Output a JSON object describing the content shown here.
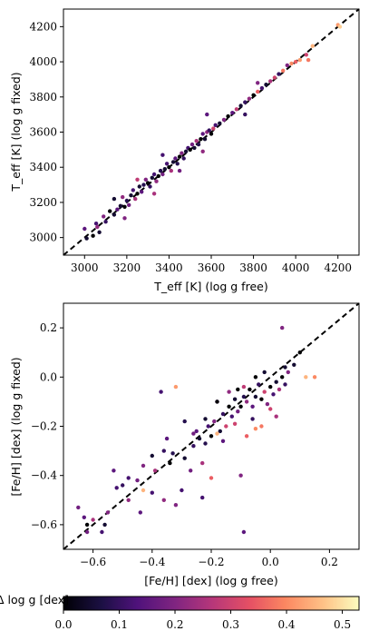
{
  "chart_data": [
    {
      "type": "scatter",
      "xlabel": "T_eff [K] (log g free)",
      "ylabel": "T_eff [K] (log g fixed)",
      "xlim": [
        2900,
        4300
      ],
      "ylim": [
        2900,
        4300
      ],
      "xticks": [
        "3000",
        "3200",
        "3400",
        "3600",
        "3800",
        "4000",
        "4200"
      ],
      "yticks": [
        "3000",
        "3200",
        "3400",
        "3600",
        "3800",
        "4000",
        "4200"
      ],
      "one_to_one_line": true,
      "color_by": "delta_log_g",
      "points": [
        {
          "x": 3000,
          "y": 3050,
          "c": 0.15
        },
        {
          "x": 3010,
          "y": 2995,
          "c": 0.05
        },
        {
          "x": 3040,
          "y": 3010,
          "c": 0.0
        },
        {
          "x": 3055,
          "y": 3080,
          "c": 0.12
        },
        {
          "x": 3060,
          "y": 3060,
          "c": 0.22
        },
        {
          "x": 3070,
          "y": 3030,
          "c": 0.05
        },
        {
          "x": 3090,
          "y": 3120,
          "c": 0.2
        },
        {
          "x": 3100,
          "y": 3090,
          "c": 0.1
        },
        {
          "x": 3120,
          "y": 3150,
          "c": 0.0
        },
        {
          "x": 3140,
          "y": 3130,
          "c": 0.05
        },
        {
          "x": 3155,
          "y": 3160,
          "c": 0.15
        },
        {
          "x": 3170,
          "y": 3180,
          "c": 0.05
        },
        {
          "x": 3180,
          "y": 3230,
          "c": 0.22
        },
        {
          "x": 3190,
          "y": 3175,
          "c": 0.0
        },
        {
          "x": 3200,
          "y": 3210,
          "c": 0.08
        },
        {
          "x": 3210,
          "y": 3185,
          "c": 0.18
        },
        {
          "x": 3220,
          "y": 3240,
          "c": 0.05
        },
        {
          "x": 3230,
          "y": 3270,
          "c": 0.12
        },
        {
          "x": 3240,
          "y": 3220,
          "c": 0.25
        },
        {
          "x": 3250,
          "y": 3250,
          "c": 0.0
        },
        {
          "x": 3260,
          "y": 3290,
          "c": 0.05
        },
        {
          "x": 3270,
          "y": 3260,
          "c": 0.15
        },
        {
          "x": 3280,
          "y": 3300,
          "c": 0.08
        },
        {
          "x": 3290,
          "y": 3330,
          "c": 0.2
        },
        {
          "x": 3300,
          "y": 3310,
          "c": 0.0
        },
        {
          "x": 3310,
          "y": 3290,
          "c": 0.1
        },
        {
          "x": 3320,
          "y": 3340,
          "c": 0.05
        },
        {
          "x": 3330,
          "y": 3360,
          "c": 0.12
        },
        {
          "x": 3340,
          "y": 3320,
          "c": 0.22
        },
        {
          "x": 3350,
          "y": 3350,
          "c": 0.0
        },
        {
          "x": 3360,
          "y": 3380,
          "c": 0.08
        },
        {
          "x": 3370,
          "y": 3360,
          "c": 0.18
        },
        {
          "x": 3380,
          "y": 3390,
          "c": 0.05
        },
        {
          "x": 3390,
          "y": 3420,
          "c": 0.12
        },
        {
          "x": 3400,
          "y": 3400,
          "c": 0.0
        },
        {
          "x": 3410,
          "y": 3380,
          "c": 0.25
        },
        {
          "x": 3420,
          "y": 3430,
          "c": 0.05
        },
        {
          "x": 3430,
          "y": 3450,
          "c": 0.15
        },
        {
          "x": 3440,
          "y": 3420,
          "c": 0.08
        },
        {
          "x": 3450,
          "y": 3460,
          "c": 0.0
        },
        {
          "x": 3460,
          "y": 3480,
          "c": 0.2
        },
        {
          "x": 3470,
          "y": 3450,
          "c": 0.1
        },
        {
          "x": 3480,
          "y": 3490,
          "c": 0.05
        },
        {
          "x": 3490,
          "y": 3510,
          "c": 0.12
        },
        {
          "x": 3500,
          "y": 3500,
          "c": 0.0
        },
        {
          "x": 3510,
          "y": 3530,
          "c": 0.18
        },
        {
          "x": 3520,
          "y": 3510,
          "c": 0.05
        },
        {
          "x": 3530,
          "y": 3550,
          "c": 0.25
        },
        {
          "x": 3540,
          "y": 3530,
          "c": 0.08
        },
        {
          "x": 3550,
          "y": 3560,
          "c": 0.0
        },
        {
          "x": 3560,
          "y": 3590,
          "c": 0.15
        },
        {
          "x": 3570,
          "y": 3560,
          "c": 0.05
        },
        {
          "x": 3580,
          "y": 3600,
          "c": 0.22
        },
        {
          "x": 3590,
          "y": 3610,
          "c": 0.1
        },
        {
          "x": 3600,
          "y": 3590,
          "c": 0.0
        },
        {
          "x": 3610,
          "y": 3620,
          "c": 0.3
        },
        {
          "x": 3620,
          "y": 3640,
          "c": 0.12
        },
        {
          "x": 3640,
          "y": 3650,
          "c": 0.05
        },
        {
          "x": 3660,
          "y": 3670,
          "c": 0.2
        },
        {
          "x": 3680,
          "y": 3690,
          "c": 0.0
        },
        {
          "x": 3700,
          "y": 3710,
          "c": 0.15
        },
        {
          "x": 3720,
          "y": 3730,
          "c": 0.28
        },
        {
          "x": 3740,
          "y": 3750,
          "c": 0.05
        },
        {
          "x": 3760,
          "y": 3770,
          "c": 0.1
        },
        {
          "x": 3780,
          "y": 3790,
          "c": 0.22
        },
        {
          "x": 3800,
          "y": 3810,
          "c": 0.0
        },
        {
          "x": 3820,
          "y": 3830,
          "c": 0.35
        },
        {
          "x": 3840,
          "y": 3850,
          "c": 0.12
        },
        {
          "x": 3860,
          "y": 3870,
          "c": 0.05
        },
        {
          "x": 3880,
          "y": 3890,
          "c": 0.25
        },
        {
          "x": 3900,
          "y": 3910,
          "c": 0.3
        },
        {
          "x": 3920,
          "y": 3930,
          "c": 0.1
        },
        {
          "x": 3940,
          "y": 3950,
          "c": 0.38
        },
        {
          "x": 3960,
          "y": 3980,
          "c": 0.2
        },
        {
          "x": 3980,
          "y": 3990,
          "c": 0.4
        },
        {
          "x": 4000,
          "y": 4000,
          "c": 0.35
        },
        {
          "x": 4020,
          "y": 4010,
          "c": 0.42
        },
        {
          "x": 4050,
          "y": 4040,
          "c": 0.3
        },
        {
          "x": 4060,
          "y": 4010,
          "c": 0.38
        },
        {
          "x": 4080,
          "y": 4090,
          "c": 0.45
        },
        {
          "x": 4200,
          "y": 4210,
          "c": 0.42
        },
        {
          "x": 4210,
          "y": 4200,
          "c": 0.48
        },
        {
          "x": 3190,
          "y": 3110,
          "c": 0.2
        },
        {
          "x": 3330,
          "y": 3250,
          "c": 0.25
        },
        {
          "x": 3450,
          "y": 3380,
          "c": 0.18
        },
        {
          "x": 3560,
          "y": 3490,
          "c": 0.22
        },
        {
          "x": 3580,
          "y": 3700,
          "c": 0.15
        },
        {
          "x": 3370,
          "y": 3470,
          "c": 0.12
        },
        {
          "x": 3250,
          "y": 3330,
          "c": 0.28
        },
        {
          "x": 3760,
          "y": 3700,
          "c": 0.1
        },
        {
          "x": 3820,
          "y": 3880,
          "c": 0.2
        },
        {
          "x": 3140,
          "y": 3220,
          "c": 0.05
        }
      ]
    },
    {
      "type": "scatter",
      "xlabel": "[Fe/H] [dex] (log g free)",
      "ylabel": "[Fe/H] [dex] (log g fixed)",
      "xlim": [
        -0.7,
        0.3
      ],
      "ylim": [
        -0.7,
        0.3
      ],
      "xticks": [
        "−0.6",
        "−0.4",
        "−0.2",
        "0.0",
        "0.2"
      ],
      "yticks": [
        "−0.6",
        "−0.4",
        "−0.2",
        "0.0",
        "0.2"
      ],
      "one_to_one_line": true,
      "color_by": "delta_log_g",
      "points": [
        {
          "x": -0.65,
          "y": -0.53,
          "c": 0.18
        },
        {
          "x": -0.63,
          "y": -0.57,
          "c": 0.15
        },
        {
          "x": -0.62,
          "y": -0.6,
          "c": 0.0
        },
        {
          "x": -0.57,
          "y": -0.63,
          "c": 0.12
        },
        {
          "x": -0.56,
          "y": -0.6,
          "c": 0.05
        },
        {
          "x": -0.55,
          "y": -0.55,
          "c": 0.2
        },
        {
          "x": -0.53,
          "y": -0.38,
          "c": 0.15
        },
        {
          "x": -0.5,
          "y": -0.44,
          "c": 0.1
        },
        {
          "x": -0.48,
          "y": -0.5,
          "c": 0.22
        },
        {
          "x": -0.45,
          "y": -0.42,
          "c": 0.18
        },
        {
          "x": -0.43,
          "y": -0.46,
          "c": 0.45
        },
        {
          "x": -0.4,
          "y": -0.47,
          "c": 0.12
        },
        {
          "x": -0.39,
          "y": -0.38,
          "c": 0.25
        },
        {
          "x": -0.37,
          "y": -0.06,
          "c": 0.12
        },
        {
          "x": -0.36,
          "y": -0.3,
          "c": 0.1
        },
        {
          "x": -0.35,
          "y": -0.25,
          "c": 0.15
        },
        {
          "x": -0.33,
          "y": -0.31,
          "c": 0.08
        },
        {
          "x": -0.32,
          "y": -0.52,
          "c": 0.2
        },
        {
          "x": -0.3,
          "y": -0.46,
          "c": 0.12
        },
        {
          "x": -0.29,
          "y": -0.33,
          "c": 0.05
        },
        {
          "x": -0.27,
          "y": -0.38,
          "c": 0.18
        },
        {
          "x": -0.26,
          "y": -0.28,
          "c": 0.1
        },
        {
          "x": -0.25,
          "y": -0.22,
          "c": 0.15
        },
        {
          "x": -0.24,
          "y": -0.25,
          "c": 0.05
        },
        {
          "x": -0.23,
          "y": -0.35,
          "c": 0.25
        },
        {
          "x": -0.22,
          "y": -0.27,
          "c": 0.08
        },
        {
          "x": -0.21,
          "y": -0.2,
          "c": 0.12
        },
        {
          "x": -0.2,
          "y": -0.24,
          "c": 0.0
        },
        {
          "x": -0.19,
          "y": -0.18,
          "c": 0.2
        },
        {
          "x": -0.18,
          "y": -0.1,
          "c": 0.15
        },
        {
          "x": -0.17,
          "y": -0.22,
          "c": 0.05
        },
        {
          "x": -0.16,
          "y": -0.15,
          "c": 0.1
        },
        {
          "x": -0.15,
          "y": -0.2,
          "c": 0.3
        },
        {
          "x": -0.14,
          "y": -0.12,
          "c": 0.0
        },
        {
          "x": -0.13,
          "y": -0.16,
          "c": 0.12
        },
        {
          "x": -0.12,
          "y": -0.09,
          "c": 0.05
        },
        {
          "x": -0.11,
          "y": -0.14,
          "c": 0.18
        },
        {
          "x": -0.1,
          "y": -0.12,
          "c": 0.0
        },
        {
          "x": -0.09,
          "y": -0.08,
          "c": 0.08
        },
        {
          "x": -0.08,
          "y": -0.1,
          "c": 0.22
        },
        {
          "x": -0.07,
          "y": -0.05,
          "c": 0.0
        },
        {
          "x": -0.06,
          "y": -0.12,
          "c": 0.15
        },
        {
          "x": -0.05,
          "y": -0.08,
          "c": 0.05
        },
        {
          "x": -0.04,
          "y": -0.03,
          "c": 0.1
        },
        {
          "x": -0.03,
          "y": -0.09,
          "c": 0.0
        },
        {
          "x": -0.02,
          "y": -0.06,
          "c": 0.3
        },
        {
          "x": -0.01,
          "y": -0.11,
          "c": 0.2
        },
        {
          "x": 0.0,
          "y": -0.04,
          "c": 0.0
        },
        {
          "x": 0.01,
          "y": -0.07,
          "c": 0.12
        },
        {
          "x": 0.02,
          "y": -0.02,
          "c": 0.05
        },
        {
          "x": 0.03,
          "y": -0.05,
          "c": 0.25
        },
        {
          "x": 0.04,
          "y": 0.0,
          "c": 0.0
        },
        {
          "x": 0.05,
          "y": -0.03,
          "c": 0.1
        },
        {
          "x": 0.06,
          "y": 0.02,
          "c": 0.2
        },
        {
          "x": 0.08,
          "y": 0.05,
          "c": 0.05
        },
        {
          "x": 0.1,
          "y": 0.1,
          "c": 0.0
        },
        {
          "x": 0.04,
          "y": 0.2,
          "c": 0.2
        },
        {
          "x": 0.15,
          "y": 0.0,
          "c": 0.4
        },
        {
          "x": 0.12,
          "y": 0.0,
          "c": 0.45
        },
        {
          "x": -0.05,
          "y": 0.0,
          "c": 0.0
        },
        {
          "x": -0.32,
          "y": -0.04,
          "c": 0.42
        },
        {
          "x": -0.2,
          "y": -0.41,
          "c": 0.35
        },
        {
          "x": -0.09,
          "y": -0.63,
          "c": 0.15
        },
        {
          "x": -0.1,
          "y": -0.4,
          "c": 0.2
        },
        {
          "x": -0.23,
          "y": -0.49,
          "c": 0.12
        },
        {
          "x": -0.18,
          "y": -0.23,
          "c": 0.45
        },
        {
          "x": -0.08,
          "y": -0.24,
          "c": 0.35
        },
        {
          "x": -0.05,
          "y": -0.21,
          "c": 0.4
        },
        {
          "x": -0.03,
          "y": -0.2,
          "c": 0.38
        },
        {
          "x": -0.09,
          "y": -0.04,
          "c": 0.28
        },
        {
          "x": -0.12,
          "y": -0.19,
          "c": 0.3
        },
        {
          "x": -0.14,
          "y": -0.06,
          "c": 0.22
        },
        {
          "x": -0.18,
          "y": -0.1,
          "c": 0.0
        },
        {
          "x": -0.22,
          "y": -0.17,
          "c": 0.05
        },
        {
          "x": -0.16,
          "y": -0.26,
          "c": 0.15
        },
        {
          "x": -0.26,
          "y": -0.23,
          "c": 0.18
        },
        {
          "x": -0.4,
          "y": -0.32,
          "c": 0.05
        },
        {
          "x": -0.43,
          "y": -0.36,
          "c": 0.2
        },
        {
          "x": -0.48,
          "y": -0.41,
          "c": 0.12
        },
        {
          "x": -0.6,
          "y": -0.58,
          "c": 0.25
        },
        {
          "x": -0.62,
          "y": -0.63,
          "c": 0.18
        },
        {
          "x": 0.0,
          "y": -0.13,
          "c": 0.3
        },
        {
          "x": 0.02,
          "y": -0.16,
          "c": 0.25
        },
        {
          "x": -0.06,
          "y": -0.17,
          "c": 0.1
        },
        {
          "x": -0.02,
          "y": 0.02,
          "c": 0.05
        },
        {
          "x": -0.11,
          "y": -0.05,
          "c": 0.0
        },
        {
          "x": 0.05,
          "y": 0.04,
          "c": 0.05
        },
        {
          "x": -0.29,
          "y": -0.18,
          "c": 0.08
        },
        {
          "x": -0.34,
          "y": -0.35,
          "c": 0.0
        },
        {
          "x": -0.36,
          "y": -0.5,
          "c": 0.22
        },
        {
          "x": -0.44,
          "y": -0.55,
          "c": 0.15
        },
        {
          "x": -0.52,
          "y": -0.45,
          "c": 0.12
        }
      ]
    }
  ],
  "colorbar": {
    "label": "Δ log g [dex]",
    "range": [
      0.0,
      0.53
    ],
    "ticks": [
      "0.0",
      "0.1",
      "0.2",
      "0.3",
      "0.4",
      "0.5"
    ],
    "colormap": "magma"
  }
}
